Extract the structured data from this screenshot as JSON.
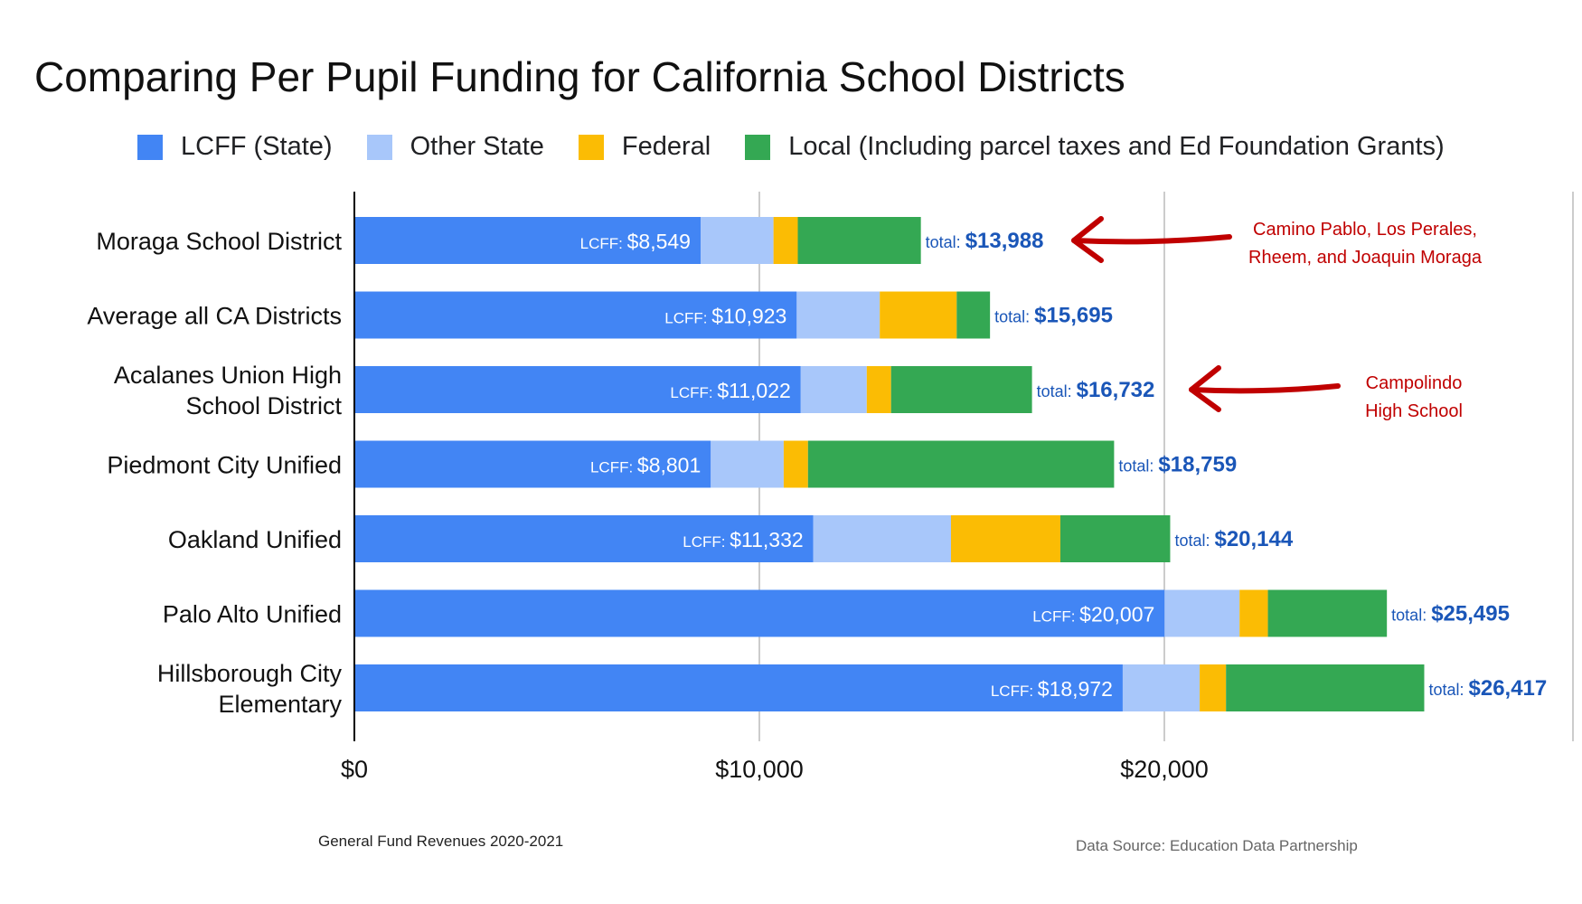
{
  "chart_data": {
    "type": "bar",
    "orientation": "horizontal",
    "stacked": true,
    "title": "Comparing Per Pupil Funding for California School Districts",
    "categories": [
      "Moraga School District",
      "Average all CA Districts",
      "Acalanes Union High School District",
      "Piedmont City Unified",
      "Oakland Unified",
      "Palo Alto Unified",
      "Hillsborough City Elementary"
    ],
    "category_lines": [
      [
        "Moraga School District"
      ],
      [
        "Average all CA Districts"
      ],
      [
        "Acalanes Union High",
        "School District"
      ],
      [
        "Piedmont City Unified"
      ],
      [
        "Oakland Unified"
      ],
      [
        "Palo Alto Unified"
      ],
      [
        "Hillsborough City",
        "Elementary"
      ]
    ],
    "series": [
      {
        "name": "LCFF (State)",
        "color": "#4285f4",
        "values": [
          8549,
          10923,
          11022,
          8801,
          11332,
          20007,
          18972
        ]
      },
      {
        "name": "Other State",
        "color": "#a8c7fa",
        "values": [
          1800,
          2050,
          1630,
          1800,
          3400,
          1850,
          1900
        ]
      },
      {
        "name": "Federal",
        "color": "#fbbc04",
        "values": [
          600,
          1900,
          600,
          600,
          2700,
          700,
          650
        ]
      },
      {
        "name": "Local (Including parcel taxes and Ed Foundation Grants)",
        "color": "#34a853",
        "values": [
          3039,
          822,
          3480,
          7558,
          2712,
          2938,
          4895
        ]
      }
    ],
    "lcff_prefix": "LCFF:",
    "lcff_labels": [
      "$8,549",
      "$10,923",
      "$11,022",
      "$8,801",
      "$11,332",
      "$20,007",
      "$18,972"
    ],
    "total_prefix": "total:",
    "totals": [
      13988,
      15695,
      16732,
      18759,
      20144,
      25495,
      26417
    ],
    "total_labels": [
      "$13,988",
      "$15,695",
      "$16,732",
      "$18,759",
      "$20,144",
      "$25,495",
      "$26,417"
    ],
    "xlim": [
      0,
      30000
    ],
    "xticks": [
      0,
      10000,
      20000
    ],
    "xtick_labels": [
      "$0",
      "$10,000",
      "$20,000"
    ],
    "grid": true,
    "legend_position": "top",
    "annotations": [
      {
        "lines": [
          "Camino Pablo, Los Perales,",
          "Rheem, and Joaquin Moraga"
        ],
        "points_to": "Moraga School District",
        "color": "#c00000"
      },
      {
        "lines": [
          "Campolindo",
          "High School"
        ],
        "points_to": "Acalanes Union High School District",
        "color": "#c00000"
      }
    ]
  },
  "colors": {
    "total_text": "#1a56b8",
    "bar_text": "#ffffff",
    "annotation": "#c00000",
    "grid": "#cccccc",
    "axis": "#000000"
  },
  "footnotes": {
    "left": "General Fund Revenues 2020-2021",
    "right": "Data Source:  Education Data Partnership"
  }
}
